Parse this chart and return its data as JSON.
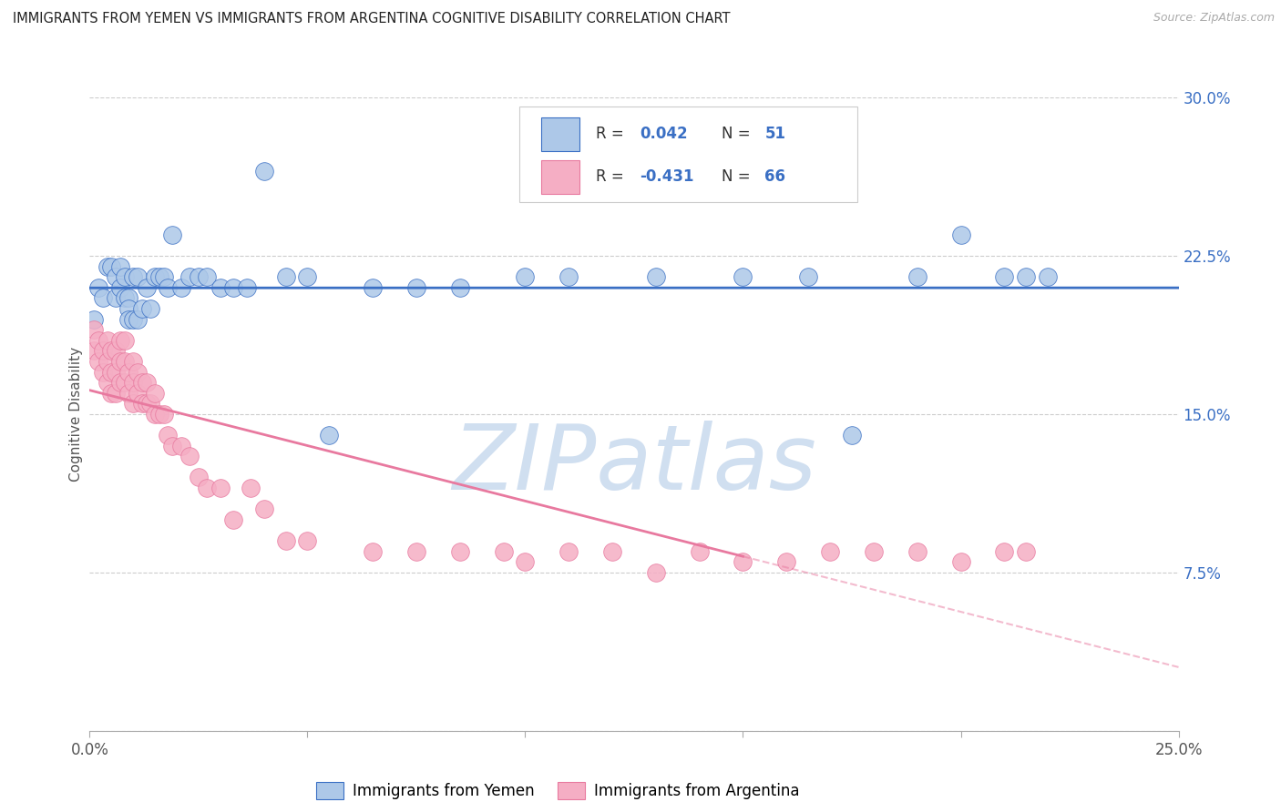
{
  "title": "IMMIGRANTS FROM YEMEN VS IMMIGRANTS FROM ARGENTINA COGNITIVE DISABILITY CORRELATION CHART",
  "source": "Source: ZipAtlas.com",
  "ylabel": "Cognitive Disability",
  "xlim": [
    0.0,
    0.25
  ],
  "ylim": [
    0.0,
    0.3
  ],
  "xticks": [
    0.0,
    0.05,
    0.1,
    0.15,
    0.2,
    0.25
  ],
  "yticks": [
    0.0,
    0.075,
    0.15,
    0.225,
    0.3
  ],
  "xticklabels": [
    "0.0%",
    "",
    "",
    "",
    "",
    "25.0%"
  ],
  "yticklabels": [
    "",
    "7.5%",
    "15.0%",
    "22.5%",
    "30.0%"
  ],
  "legend_labels": [
    "Immigrants from Yemen",
    "Immigrants from Argentina"
  ],
  "scatter_yemen_color": "#adc8e8",
  "scatter_argentina_color": "#f5aec4",
  "line_yemen_color": "#3a6fc4",
  "line_argentina_color": "#e8799f",
  "watermark_text": "ZIPatlas",
  "watermark_color": "#d0dff0",
  "yemen_x": [
    0.001,
    0.002,
    0.003,
    0.004,
    0.005,
    0.006,
    0.006,
    0.007,
    0.007,
    0.008,
    0.008,
    0.009,
    0.009,
    0.009,
    0.01,
    0.01,
    0.011,
    0.011,
    0.012,
    0.013,
    0.014,
    0.015,
    0.016,
    0.017,
    0.018,
    0.019,
    0.021,
    0.023,
    0.025,
    0.027,
    0.03,
    0.033,
    0.036,
    0.04,
    0.045,
    0.05,
    0.055,
    0.065,
    0.075,
    0.085,
    0.1,
    0.11,
    0.13,
    0.15,
    0.165,
    0.175,
    0.19,
    0.2,
    0.21,
    0.215,
    0.22
  ],
  "yemen_y": [
    0.195,
    0.21,
    0.205,
    0.22,
    0.22,
    0.215,
    0.205,
    0.22,
    0.21,
    0.215,
    0.205,
    0.205,
    0.2,
    0.195,
    0.215,
    0.195,
    0.215,
    0.195,
    0.2,
    0.21,
    0.2,
    0.215,
    0.215,
    0.215,
    0.21,
    0.235,
    0.21,
    0.215,
    0.215,
    0.215,
    0.21,
    0.21,
    0.21,
    0.265,
    0.215,
    0.215,
    0.14,
    0.21,
    0.21,
    0.21,
    0.215,
    0.215,
    0.215,
    0.215,
    0.215,
    0.14,
    0.215,
    0.235,
    0.215,
    0.215,
    0.215
  ],
  "argentina_x": [
    0.001,
    0.001,
    0.002,
    0.002,
    0.003,
    0.003,
    0.004,
    0.004,
    0.004,
    0.005,
    0.005,
    0.005,
    0.006,
    0.006,
    0.006,
    0.007,
    0.007,
    0.007,
    0.008,
    0.008,
    0.008,
    0.009,
    0.009,
    0.01,
    0.01,
    0.01,
    0.011,
    0.011,
    0.012,
    0.012,
    0.013,
    0.013,
    0.014,
    0.015,
    0.015,
    0.016,
    0.017,
    0.018,
    0.019,
    0.021,
    0.023,
    0.025,
    0.027,
    0.03,
    0.033,
    0.037,
    0.04,
    0.045,
    0.05,
    0.065,
    0.075,
    0.085,
    0.095,
    0.1,
    0.11,
    0.12,
    0.13,
    0.14,
    0.15,
    0.16,
    0.17,
    0.18,
    0.19,
    0.2,
    0.21,
    0.215
  ],
  "argentina_y": [
    0.19,
    0.18,
    0.185,
    0.175,
    0.18,
    0.17,
    0.185,
    0.175,
    0.165,
    0.18,
    0.17,
    0.16,
    0.18,
    0.17,
    0.16,
    0.185,
    0.175,
    0.165,
    0.185,
    0.175,
    0.165,
    0.17,
    0.16,
    0.175,
    0.165,
    0.155,
    0.17,
    0.16,
    0.165,
    0.155,
    0.165,
    0.155,
    0.155,
    0.16,
    0.15,
    0.15,
    0.15,
    0.14,
    0.135,
    0.135,
    0.13,
    0.12,
    0.115,
    0.115,
    0.1,
    0.115,
    0.105,
    0.09,
    0.09,
    0.085,
    0.085,
    0.085,
    0.085,
    0.08,
    0.085,
    0.085,
    0.075,
    0.085,
    0.08,
    0.08,
    0.085,
    0.085,
    0.085,
    0.08,
    0.085,
    0.085
  ],
  "line_argentina_solid_end": 0.15,
  "background_color": "#ffffff"
}
